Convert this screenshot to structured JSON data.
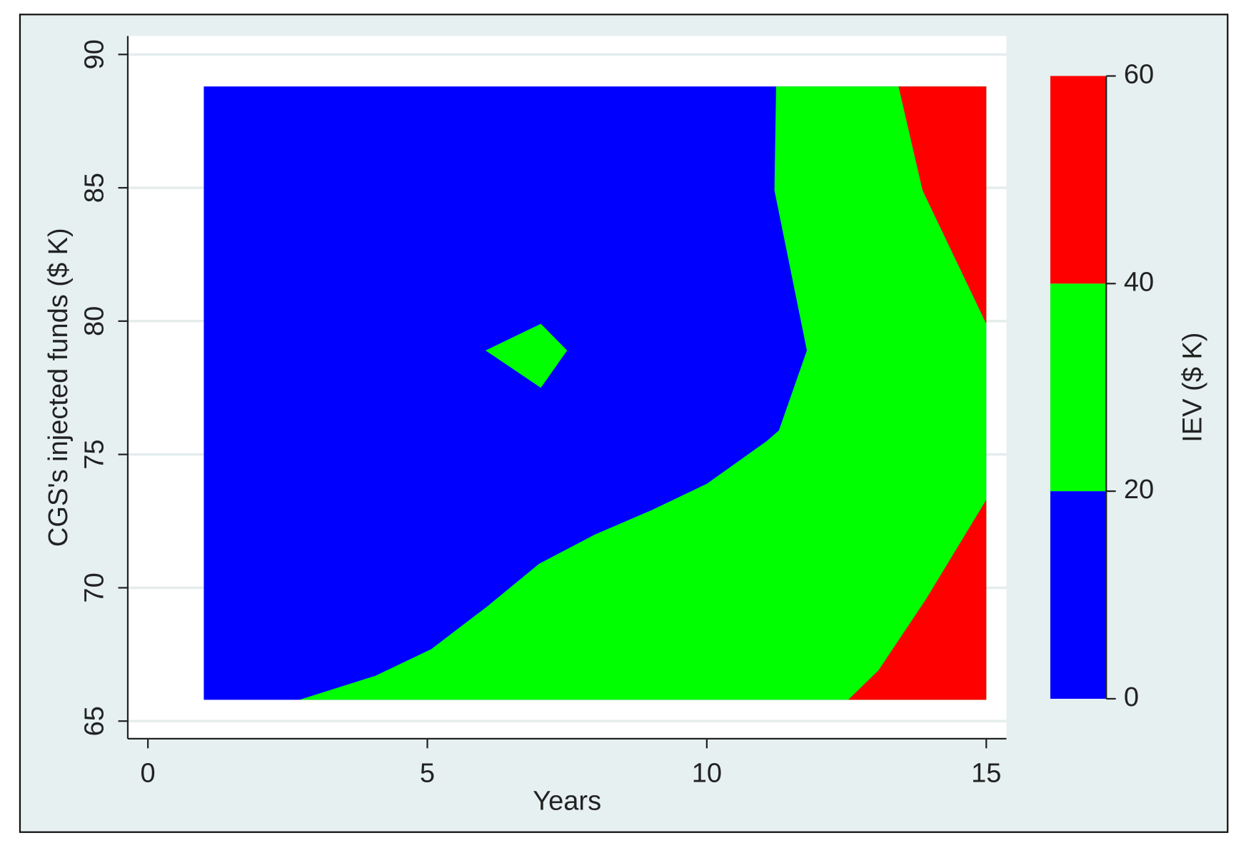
{
  "chart_data": {
    "type": "contour",
    "x_label": "Years",
    "y_label": "CGS's injected funds ($ K)",
    "z_label": "IEV ($ K)",
    "xlim": [
      -0.36,
      15.36
    ],
    "xticks": [
      0,
      5,
      10,
      15
    ],
    "ylim": [
      64.34,
      90.69
    ],
    "yticks": [
      65,
      70,
      75,
      80,
      85,
      90
    ],
    "grid": true,
    "zlim": [
      0,
      60
    ],
    "zticks": [
      0,
      20,
      40,
      60
    ],
    "colors": [
      "#0000ff",
      "#00ff00",
      "#ff0000"
    ],
    "regions": [
      {
        "color": "#0000ff",
        "x": [
          1.0,
          15,
          15,
          1.0
        ],
        "y": [
          65.8,
          65.8,
          88.8,
          88.8
        ]
      },
      {
        "color": "#00ff00",
        "x": [
          2.71,
          4.07,
          5.07,
          6.07,
          7.0,
          8.0,
          9.0,
          10.0,
          11.07,
          11.29,
          11.79,
          11.21,
          11.24,
          15,
          15
        ],
        "y": [
          65.8,
          66.7,
          67.7,
          69.3,
          70.9,
          72.0,
          72.9,
          73.9,
          75.5,
          75.9,
          78.9,
          84.9,
          88.8,
          88.8,
          65.8
        ]
      },
      {
        "color": "#00ff00",
        "x": [
          6.04,
          7.03,
          7.5,
          7.03
        ],
        "y": [
          78.9,
          79.9,
          78.9,
          77.5
        ]
      },
      {
        "color": "#ff0000",
        "x": [
          13.43,
          13.86,
          15,
          15
        ],
        "y": [
          88.8,
          84.9,
          79.9,
          88.8
        ]
      },
      {
        "color": "#ff0000",
        "x": [
          12.53,
          13.07,
          13.93,
          15,
          15
        ],
        "y": [
          65.8,
          66.9,
          69.6,
          73.3,
          65.8
        ]
      }
    ]
  }
}
